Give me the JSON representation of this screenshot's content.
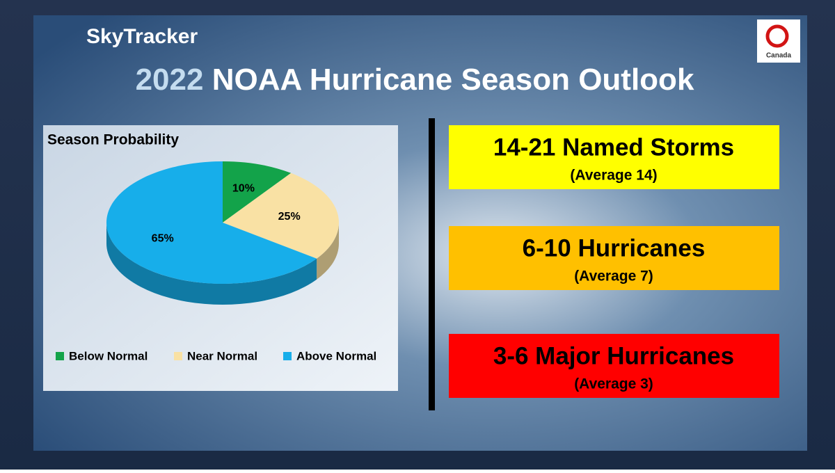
{
  "header": {
    "brand": "SkyTracker",
    "year": "2022",
    "title": "NOAA Hurricane Season Outlook",
    "logo": "Canada"
  },
  "chart_data": {
    "type": "pie",
    "title": "Season Probability",
    "categories": [
      "Below Normal",
      "Near Normal",
      "Above Normal"
    ],
    "values": [
      10,
      25,
      65
    ],
    "value_labels": [
      "10%",
      "25%",
      "65%"
    ],
    "colors": [
      "#13a34a",
      "#f9e1a4",
      "#17aeea"
    ],
    "legend": "bottom"
  },
  "outlook": [
    {
      "headline": "14-21 Named Storms",
      "note": "(Average 14)",
      "color": "#ffff00"
    },
    {
      "headline": "6-10 Hurricanes",
      "note": "(Average 7)",
      "color": "#ffc000"
    },
    {
      "headline": "3-6 Major Hurricanes",
      "note": "(Average 3)",
      "color": "#ff0000"
    }
  ]
}
